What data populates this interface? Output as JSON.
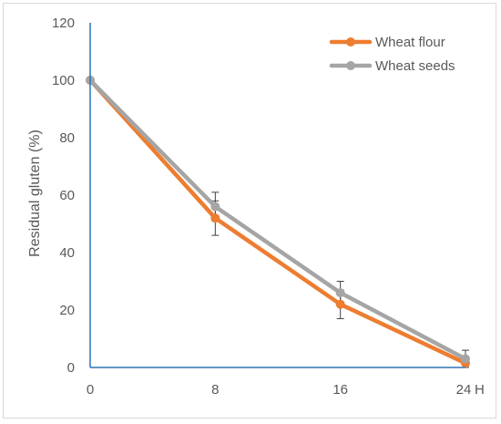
{
  "chart_data": {
    "type": "line",
    "title": "",
    "xlabel": "",
    "x_unit_label": "H",
    "ylabel": "Residual gluten (%)",
    "x": [
      0,
      8,
      16,
      24
    ],
    "x_tick_labels": [
      "0",
      "8",
      "16",
      "24"
    ],
    "ylim": [
      0,
      120
    ],
    "y_ticks": [
      0,
      20,
      40,
      60,
      80,
      100,
      120
    ],
    "grid": false,
    "legend_position": "top-right",
    "series": [
      {
        "name": "Wheat flour",
        "color": "#ed7d31",
        "values": [
          100,
          52,
          22,
          1.5
        ],
        "error": [
          0,
          6,
          5,
          0
        ]
      },
      {
        "name": "Wheat seeds",
        "color": "#a5a5a5",
        "values": [
          100,
          56,
          26,
          3
        ],
        "error": [
          0,
          5,
          4,
          3
        ]
      }
    ],
    "axis_color": "#2e75b6",
    "error_bar_color": "#404040"
  }
}
